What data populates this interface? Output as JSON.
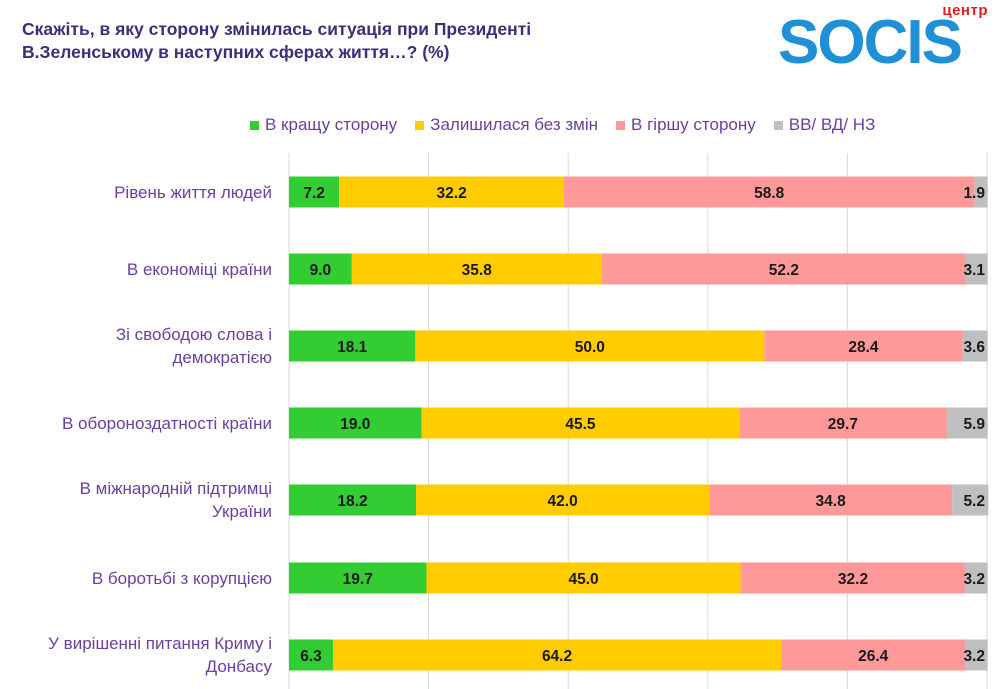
{
  "header": {
    "title_line1": "Скажіть, в яку сторону змінилась ситуація при Президенті",
    "title_line2": "В.Зеленському в наступних сферах життя…? (%)"
  },
  "logo": {
    "top": "центр",
    "word": "SOCIS"
  },
  "colors": {
    "better": "#33cc33",
    "same": "#ffcc00",
    "worse": "#ff9999",
    "dk": "#bfbfbf",
    "text": "#6a3fa0",
    "grid": "#d9d9d9"
  },
  "chart_data": {
    "type": "bar",
    "orientation": "horizontal",
    "stacked": true,
    "xlim": [
      0,
      100
    ],
    "grid": true,
    "legend": "top",
    "categories": [
      [
        "Рівень життя людей"
      ],
      [
        "В економіці країни"
      ],
      [
        "Зі свободою слова і",
        "демократією"
      ],
      [
        "В обороноздатності країни"
      ],
      [
        "В міжнародній підтримці",
        "України"
      ],
      [
        "В боротьбі з корупцією"
      ],
      [
        "У вирішенні питання Криму і",
        "Донбасу"
      ]
    ],
    "series": [
      {
        "name": "В кращу сторону",
        "color": "#33cc33",
        "values": [
          7.2,
          9.0,
          18.1,
          19.0,
          18.2,
          19.7,
          6.3
        ]
      },
      {
        "name": "Залишилася без змін",
        "color": "#ffcc00",
        "values": [
          32.2,
          35.8,
          50.0,
          45.5,
          42.0,
          45.0,
          64.2
        ]
      },
      {
        "name": "В гіршу сторону",
        "color": "#ff9999",
        "values": [
          58.8,
          52.2,
          28.4,
          29.7,
          34.8,
          32.2,
          26.4
        ]
      },
      {
        "name": "ВВ/ ВД/ НЗ",
        "color": "#bfbfbf",
        "values": [
          1.9,
          3.1,
          3.6,
          5.9,
          5.2,
          3.2,
          3.2
        ]
      }
    ]
  }
}
